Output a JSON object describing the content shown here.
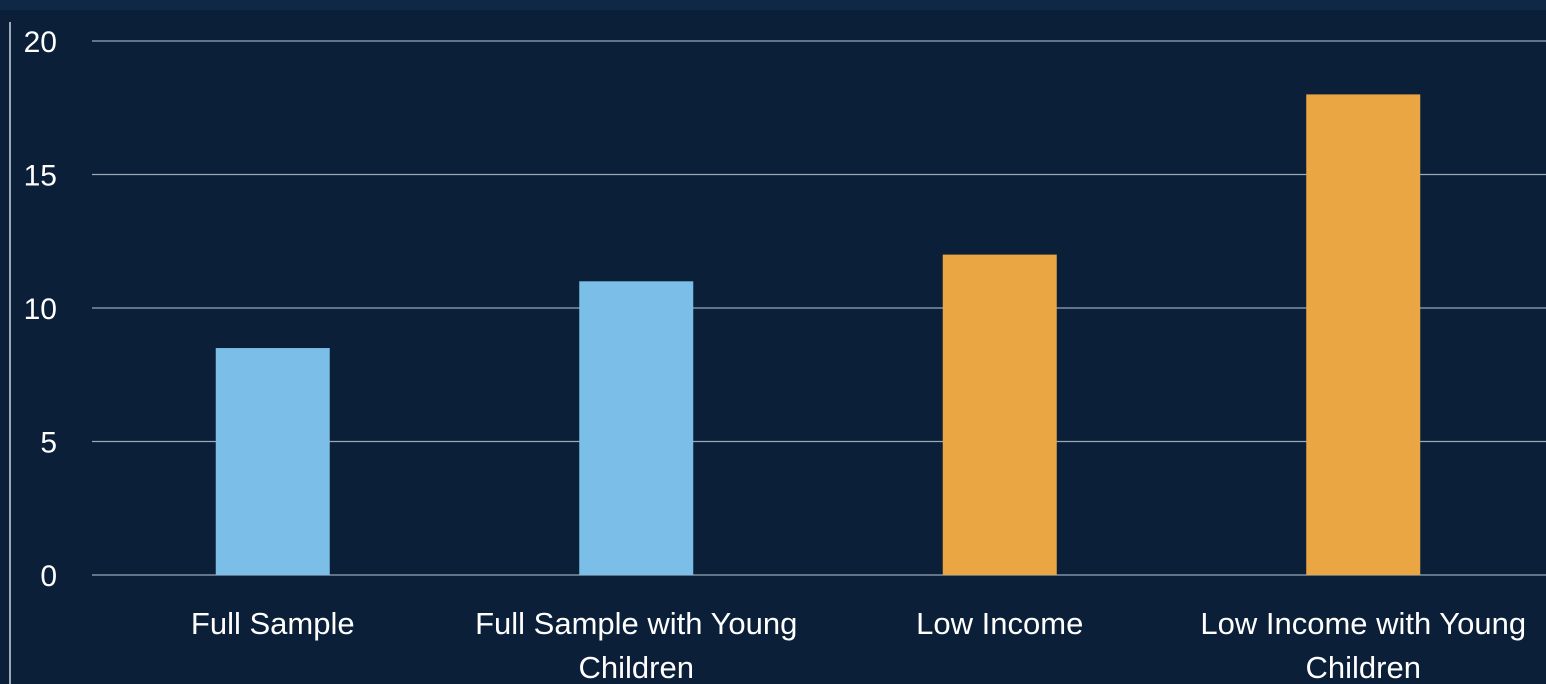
{
  "chart_data": {
    "type": "bar",
    "title": "",
    "xlabel": "",
    "ylabel": "",
    "ylim": [
      0,
      20
    ],
    "yticks": [
      0,
      5,
      10,
      15,
      20
    ],
    "grid": true,
    "categories": [
      [
        "Full Sample"
      ],
      [
        "Full Sample with Young",
        "Children"
      ],
      [
        "Low Income"
      ],
      [
        "Low Income with Young",
        "Children"
      ]
    ],
    "values": [
      8.5,
      11,
      12,
      18
    ],
    "bar_colors": [
      "#7bbfe8",
      "#7bbfe8",
      "#e9a642",
      "#e9a642"
    ]
  },
  "style": {
    "background": "#0b1f38",
    "grid_color": "#9aa8b8",
    "axis_color": "#cfd6de",
    "text_color": "#ffffff"
  }
}
